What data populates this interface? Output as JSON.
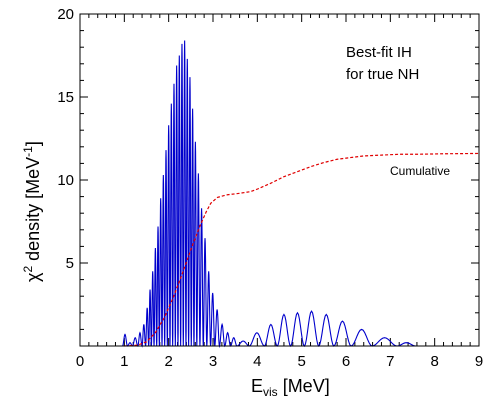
{
  "chart_data": {
    "type": "line",
    "xlim": [
      0,
      9
    ],
    "ylim": [
      0,
      20
    ],
    "x_ticks": [
      "0",
      "1",
      "2",
      "3",
      "4",
      "5",
      "6",
      "7",
      "8",
      "9"
    ],
    "y_ticks": [
      "5",
      "10",
      "15",
      "20"
    ],
    "xlabel_main": "E",
    "xlabel_sub": "vis",
    "xlabel_unit": " [MeV]",
    "ylabel_chi": "χ",
    "ylabel_sup": "2",
    "ylabel_mid": " density [MeV",
    "ylabel_exp": "-1",
    "ylabel_end": "]",
    "annotation_line1": "Best-fit IH",
    "annotation_line2": "for true NH",
    "cumulative_label": "Cumulative",
    "series": [
      {
        "style": "solid",
        "color": "#0000cc",
        "peaks": [
          [
            1.02,
            0.7
          ],
          [
            1.12,
            0.2
          ],
          [
            1.25,
            0.5
          ],
          [
            1.36,
            0.8
          ],
          [
            1.44,
            1.3
          ],
          [
            1.52,
            2.3
          ],
          [
            1.58,
            3.4
          ],
          [
            1.64,
            4.5
          ],
          [
            1.7,
            5.9
          ],
          [
            1.76,
            7.2
          ],
          [
            1.82,
            8.9
          ],
          [
            1.88,
            10.3
          ],
          [
            1.94,
            11.8
          ],
          [
            2.0,
            13.3
          ],
          [
            2.06,
            14.6
          ],
          [
            2.12,
            15.8
          ],
          [
            2.18,
            16.9
          ],
          [
            2.24,
            17.5
          ],
          [
            2.3,
            18.2
          ],
          [
            2.36,
            18.4
          ],
          [
            2.42,
            17.3
          ],
          [
            2.48,
            16.2
          ],
          [
            2.54,
            14.3
          ],
          [
            2.6,
            12.3
          ],
          [
            2.67,
            10.4
          ],
          [
            2.74,
            8.3
          ],
          [
            2.82,
            6.5
          ],
          [
            2.9,
            4.5
          ],
          [
            2.99,
            3.2
          ],
          [
            3.09,
            2.2
          ],
          [
            3.2,
            1.3
          ],
          [
            3.33,
            0.8
          ],
          [
            3.46,
            0.5
          ],
          [
            3.62,
            0.3
          ],
          [
            4.02,
            0.8
          ],
          [
            4.3,
            1.3
          ],
          [
            4.6,
            1.9
          ],
          [
            4.9,
            2.0
          ],
          [
            5.22,
            2.1
          ],
          [
            5.55,
            1.9
          ],
          [
            5.9,
            1.5
          ],
          [
            6.33,
            1.0
          ],
          [
            6.85,
            0.5
          ],
          [
            7.45,
            0.2
          ]
        ]
      },
      {
        "name": "Cumulative",
        "style": "dashed",
        "color": "#e00000",
        "x": [
          1.0,
          1.3,
          1.5,
          1.7,
          1.9,
          2.1,
          2.3,
          2.5,
          2.7,
          2.85,
          2.95,
          3.1,
          3.3,
          3.6,
          3.85,
          4.0,
          4.3,
          4.6,
          4.9,
          5.2,
          5.5,
          5.8,
          6.1,
          6.4,
          6.8,
          7.2,
          7.6,
          8.2,
          9.0
        ],
        "y": [
          0.0,
          0.05,
          0.25,
          0.8,
          1.7,
          2.9,
          4.3,
          5.8,
          7.2,
          8.1,
          8.6,
          8.95,
          9.1,
          9.2,
          9.3,
          9.45,
          9.8,
          10.2,
          10.5,
          10.8,
          11.05,
          11.25,
          11.35,
          11.45,
          11.5,
          11.55,
          11.55,
          11.58,
          11.6
        ]
      }
    ]
  }
}
